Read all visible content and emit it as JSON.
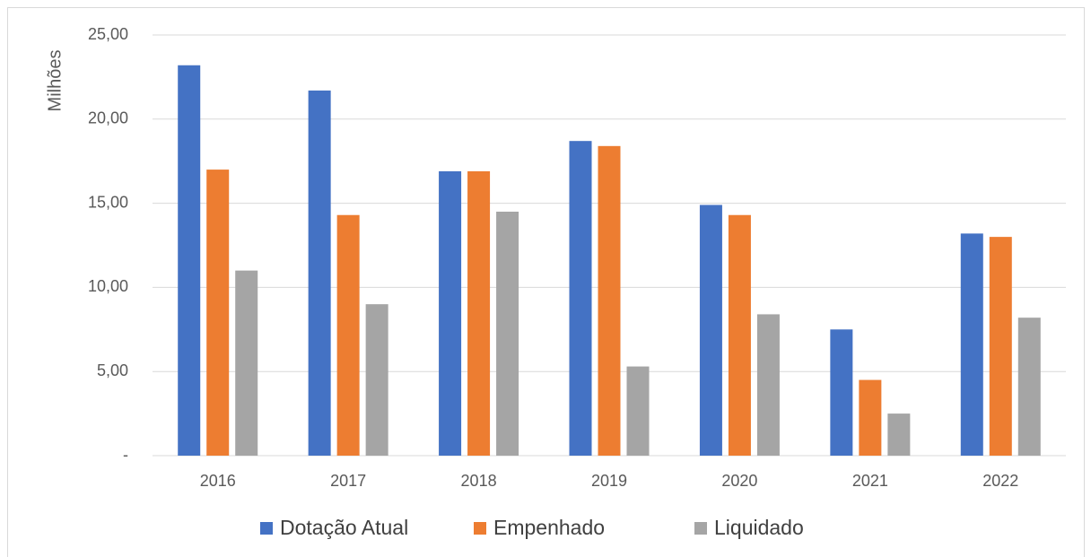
{
  "chart_data": {
    "type": "bar",
    "y_label": "Milhões",
    "categories": [
      "2016",
      "2017",
      "2018",
      "2019",
      "2020",
      "2021",
      "2022"
    ],
    "series": [
      {
        "name": "Dotação Atual",
        "color": "#4472c4",
        "values": [
          23.2,
          21.7,
          16.9,
          18.7,
          14.9,
          7.5,
          13.2
        ]
      },
      {
        "name": "Empenhado",
        "color": "#ed7d31",
        "values": [
          17.0,
          14.3,
          16.9,
          18.4,
          14.3,
          4.5,
          13.0
        ]
      },
      {
        "name": "Liquidado",
        "color": "#a5a5a5",
        "values": [
          11.0,
          9.0,
          14.5,
          5.3,
          8.4,
          2.5,
          8.2
        ]
      }
    ],
    "ylim": [
      0,
      25
    ],
    "yticks": [
      {
        "value": 0,
        "label": "-"
      },
      {
        "value": 5,
        "label": "5,00"
      },
      {
        "value": 10,
        "label": "10,00"
      },
      {
        "value": 15,
        "label": "15,00"
      },
      {
        "value": 20,
        "label": "20,00"
      },
      {
        "value": 25,
        "label": "25,00"
      }
    ],
    "grid": true,
    "legend": "bottom"
  }
}
